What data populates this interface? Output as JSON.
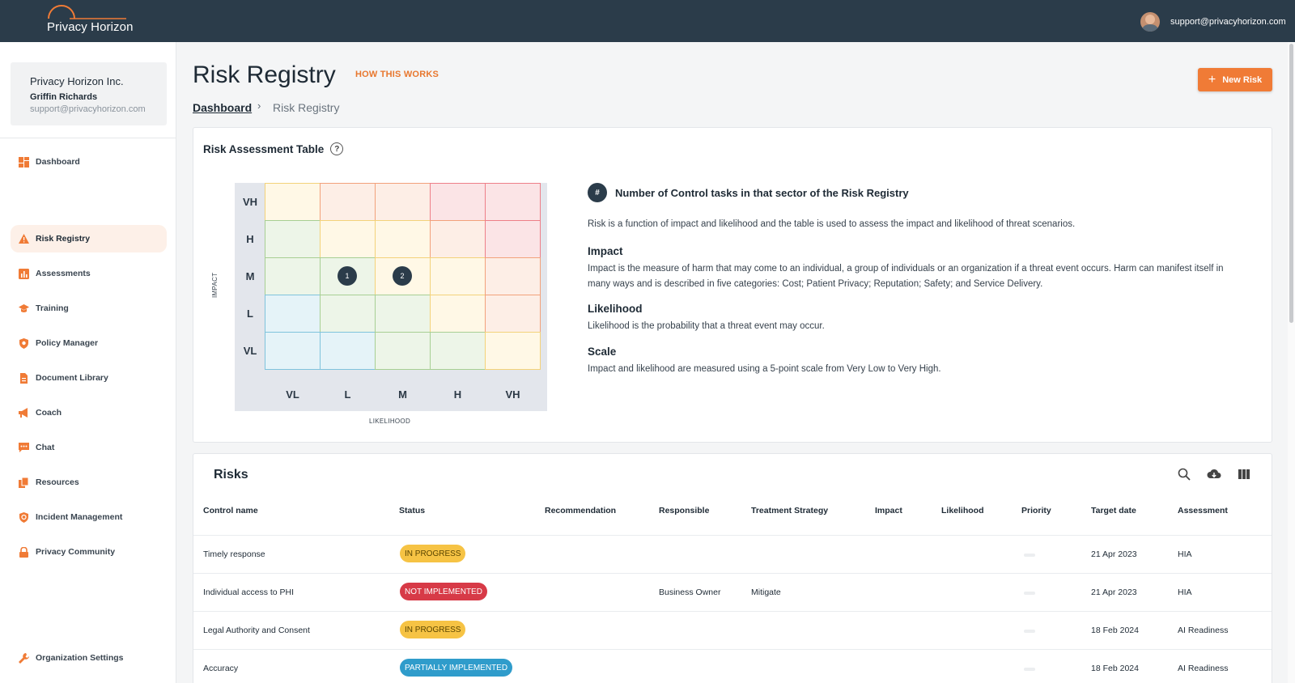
{
  "brand": {
    "name": "Privacy Horizon",
    "accent": "#f07b36",
    "header_bg": "#2b3c4a"
  },
  "header": {
    "user_email": "support@privacyhorizon.com"
  },
  "org": {
    "name": "Privacy Horizon Inc.",
    "user": "Griffin Richards",
    "email": "support@privacyhorizon.com"
  },
  "nav": {
    "items": [
      {
        "label": "Dashboard",
        "icon": "dashboard-icon"
      },
      {
        "label": "Risk Registry",
        "icon": "warning-icon",
        "active": true
      },
      {
        "label": "Assessments",
        "icon": "bar-chart-icon"
      },
      {
        "label": "Training",
        "icon": "graduation-cap-icon"
      },
      {
        "label": "Policy Manager",
        "icon": "shield-icon"
      },
      {
        "label": "Document Library",
        "icon": "document-icon"
      },
      {
        "label": "Coach",
        "icon": "megaphone-icon"
      },
      {
        "label": "Chat",
        "icon": "chat-icon"
      },
      {
        "label": "Resources",
        "icon": "copy-icon"
      },
      {
        "label": "Incident Management",
        "icon": "shield-alert-icon"
      },
      {
        "label": "Privacy Community",
        "icon": "lock-icon"
      }
    ],
    "settings": {
      "label": "Organization Settings",
      "icon": "wrench-icon"
    }
  },
  "page": {
    "title": "Risk Registry",
    "how_link": "HOW THIS WORKS",
    "new_risk_label": "New Risk",
    "breadcrumb": {
      "home": "Dashboard",
      "separator": "›",
      "current": "Risk Registry"
    }
  },
  "assessment": {
    "title": "Risk Assessment Table",
    "impact_levels": [
      "VH",
      "H",
      "M",
      "L",
      "VL"
    ],
    "likelihood_levels": [
      "VL",
      "L",
      "M",
      "H",
      "VH"
    ],
    "y_axis_label": "IMPACT",
    "x_axis_label": "LIKELIHOOD",
    "markers": [
      {
        "impact": "M",
        "likelihood": "L",
        "count": "1"
      },
      {
        "impact": "M",
        "likelihood": "M",
        "count": "2"
      }
    ],
    "legend_symbol": "#",
    "legend_text": "Number of Control tasks in that sector of the Risk Registry",
    "intro": "Risk is a function of impact and likelihood and the table is used to assess the impact and likelihood of threat scenarios.",
    "impact_heading": "Impact",
    "impact_text": "Impact is the measure of harm that may come to an individual, a group of individuals or an organization if a threat event occurs. Harm can manifest itself in many ways and is described in five categories: Cost; Patient Privacy; Reputation; Safety; and Service Delivery.",
    "likelihood_heading": "Likelihood",
    "likelihood_text": "Likelihood is the probability that a threat event may occur.",
    "scale_heading": "Scale",
    "scale_text": "Impact and likelihood are measured using a 5-point scale from Very Low to Very High."
  },
  "risks": {
    "title": "Risks",
    "columns": [
      "Control name",
      "Status",
      "Recommendation",
      "Responsible",
      "Treatment Strategy",
      "Impact",
      "Likelihood",
      "Priority",
      "Target date",
      "Assessment"
    ],
    "rows": [
      {
        "control": "Timely response",
        "status": "IN PROGRESS",
        "status_type": "progress",
        "recommendation": "",
        "responsible": "",
        "strategy": "",
        "impact": "",
        "likelihood": "",
        "target": "21 Apr 2023",
        "assessment": "HIA"
      },
      {
        "control": "Individual access to PHI",
        "status": "NOT IMPLEMENTED",
        "status_type": "not",
        "recommendation": "",
        "responsible": "Business Owner",
        "strategy": "Mitigate",
        "impact": "",
        "likelihood": "",
        "target": "21 Apr 2023",
        "assessment": "HIA"
      },
      {
        "control": "Legal Authority and Consent",
        "status": "IN PROGRESS",
        "status_type": "progress",
        "recommendation": "",
        "responsible": "",
        "strategy": "",
        "impact": "",
        "likelihood": "",
        "target": "18 Feb 2024",
        "assessment": "AI Readiness"
      },
      {
        "control": "Accuracy",
        "status": "PARTIALLY IMPLEMENTED",
        "status_type": "partial",
        "recommendation": "",
        "responsible": "",
        "strategy": "",
        "impact": "",
        "likelihood": "",
        "target": "18 Feb 2024",
        "assessment": "AI Readiness"
      }
    ]
  }
}
